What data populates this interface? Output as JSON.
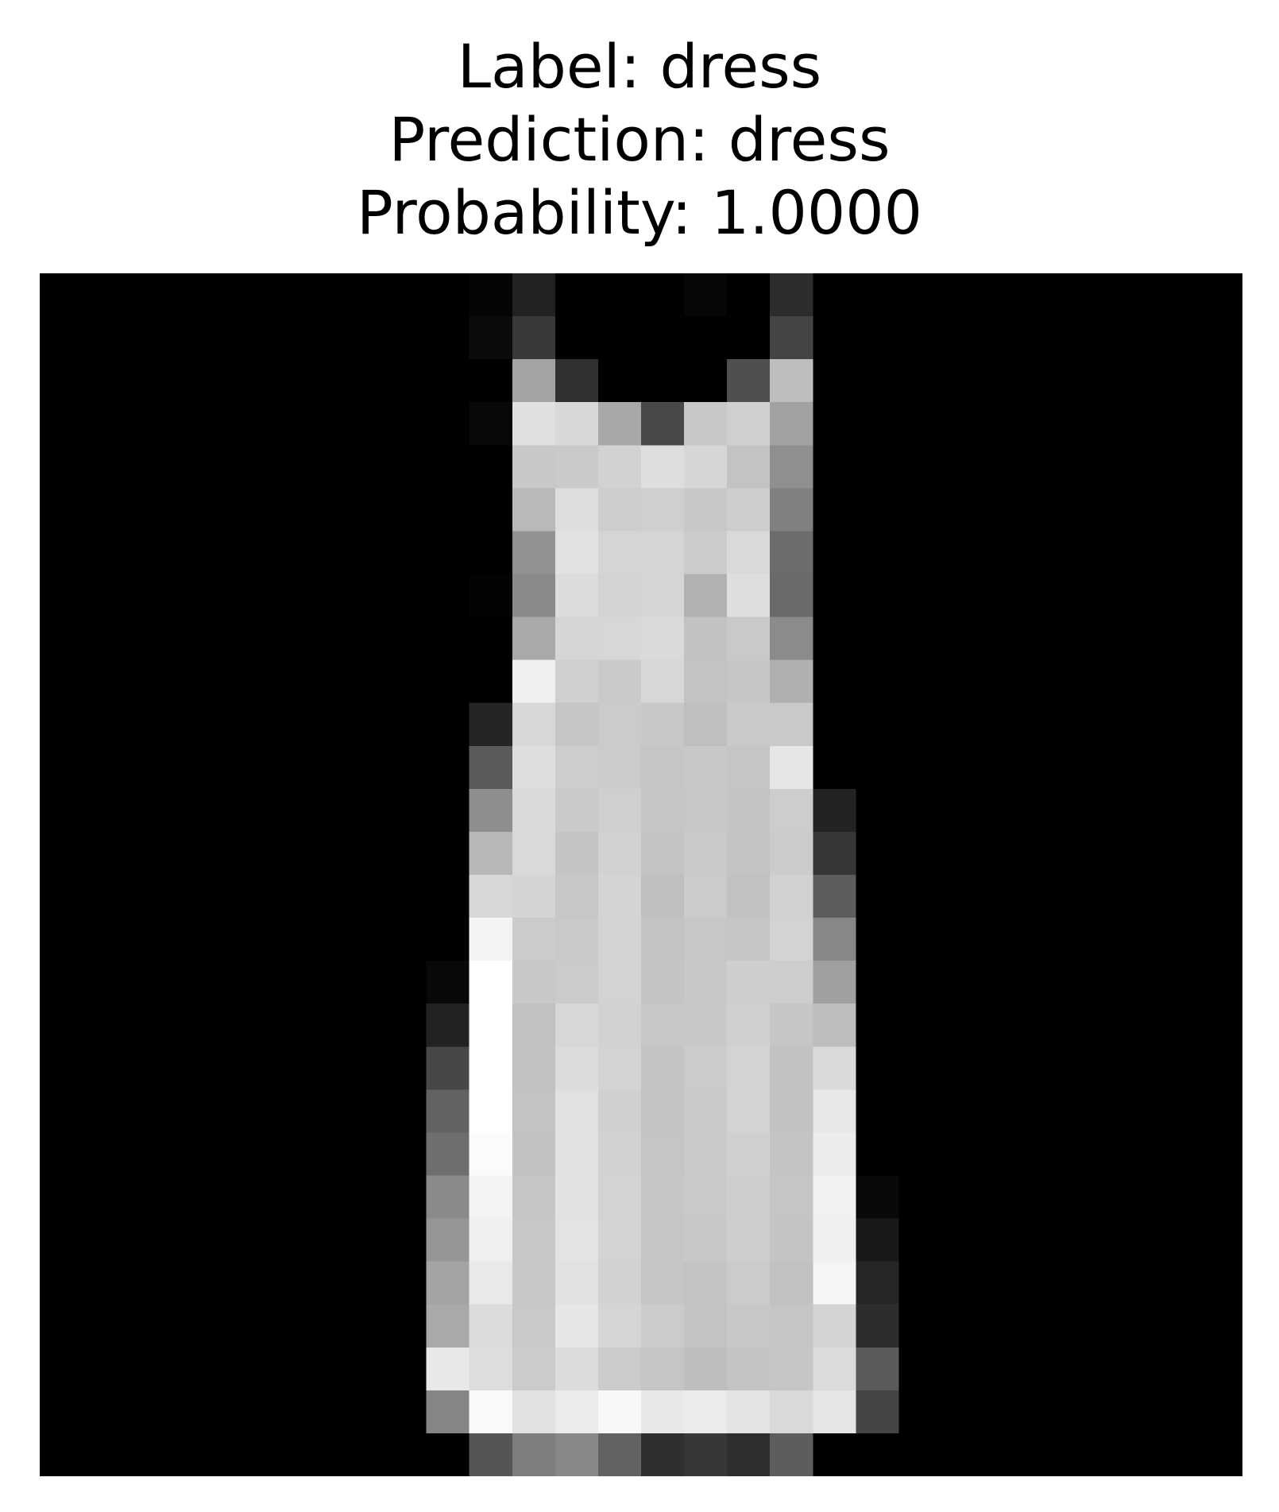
{
  "title": {
    "label_line": "Label: dress",
    "prediction_line": "Prediction: dress",
    "probability_line": "Probability: 1.0000"
  },
  "image": {
    "subject": "dress-silhouette",
    "grid_size": 28,
    "colormap": "grayscale",
    "background_color": "#000000",
    "foreground_color": "#ffffff"
  }
}
